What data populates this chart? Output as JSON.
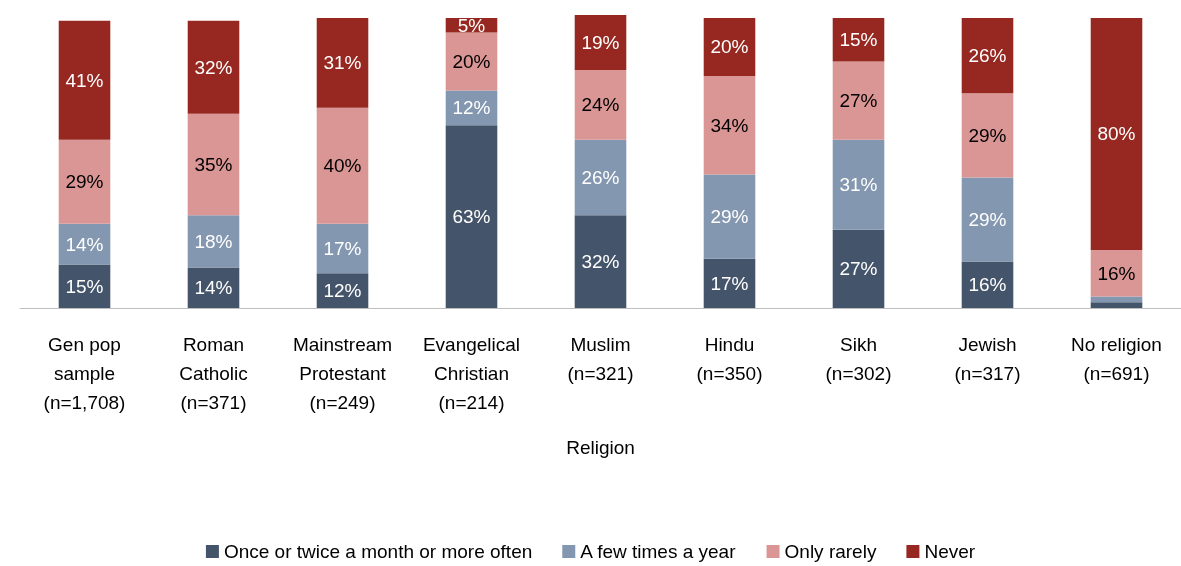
{
  "chart_data": {
    "type": "bar",
    "stacked": true,
    "legend": "bottom",
    "grid": false,
    "categories": [
      "Gen pop\nsample\n(n=1,708)",
      "Roman\nCatholic\n(n=371)",
      "Mainstream\nProtestant\n(n=249)",
      "Evangelical\nChristian\n(n=214)",
      "Muslim\n(n=321)",
      "Hindu\n(n=350)",
      "Sikh\n(n=302)",
      "Jewish\n(n=317)",
      "No religion\n(n=691)"
    ],
    "xlabel": "Religion",
    "series": [
      {
        "name": "Once or twice a month or more often",
        "color": "#44546a",
        "values": [
          15,
          14,
          12,
          63,
          32,
          17,
          27,
          16,
          2
        ],
        "value_labels": [
          "15%",
          "14%",
          "12%",
          "63%",
          "32%",
          "17%",
          "27%",
          "16%",
          null
        ]
      },
      {
        "name": "A few times a year",
        "color": "#8497b0",
        "values": [
          14,
          18,
          17,
          12,
          26,
          29,
          31,
          29,
          2
        ],
        "value_labels": [
          "14%",
          "18%",
          "17%",
          "12%",
          "26%",
          "29%",
          "31%",
          "29%",
          null
        ]
      },
      {
        "name": "Only rarely",
        "color": "#da9694",
        "values": [
          29,
          35,
          40,
          20,
          24,
          34,
          27,
          29,
          16
        ],
        "value_labels": [
          "29%",
          "35%",
          "40%",
          "20%",
          "24%",
          "34%",
          "27%",
          "29%",
          "16%"
        ]
      },
      {
        "name": "Never",
        "color": "#962821",
        "values": [
          41,
          32,
          31,
          5,
          19,
          20,
          15,
          26,
          80
        ],
        "value_labels": [
          "41%",
          "32%",
          "31%",
          "5%",
          "19%",
          "20%",
          "15%",
          "26%",
          "80%"
        ]
      }
    ]
  }
}
